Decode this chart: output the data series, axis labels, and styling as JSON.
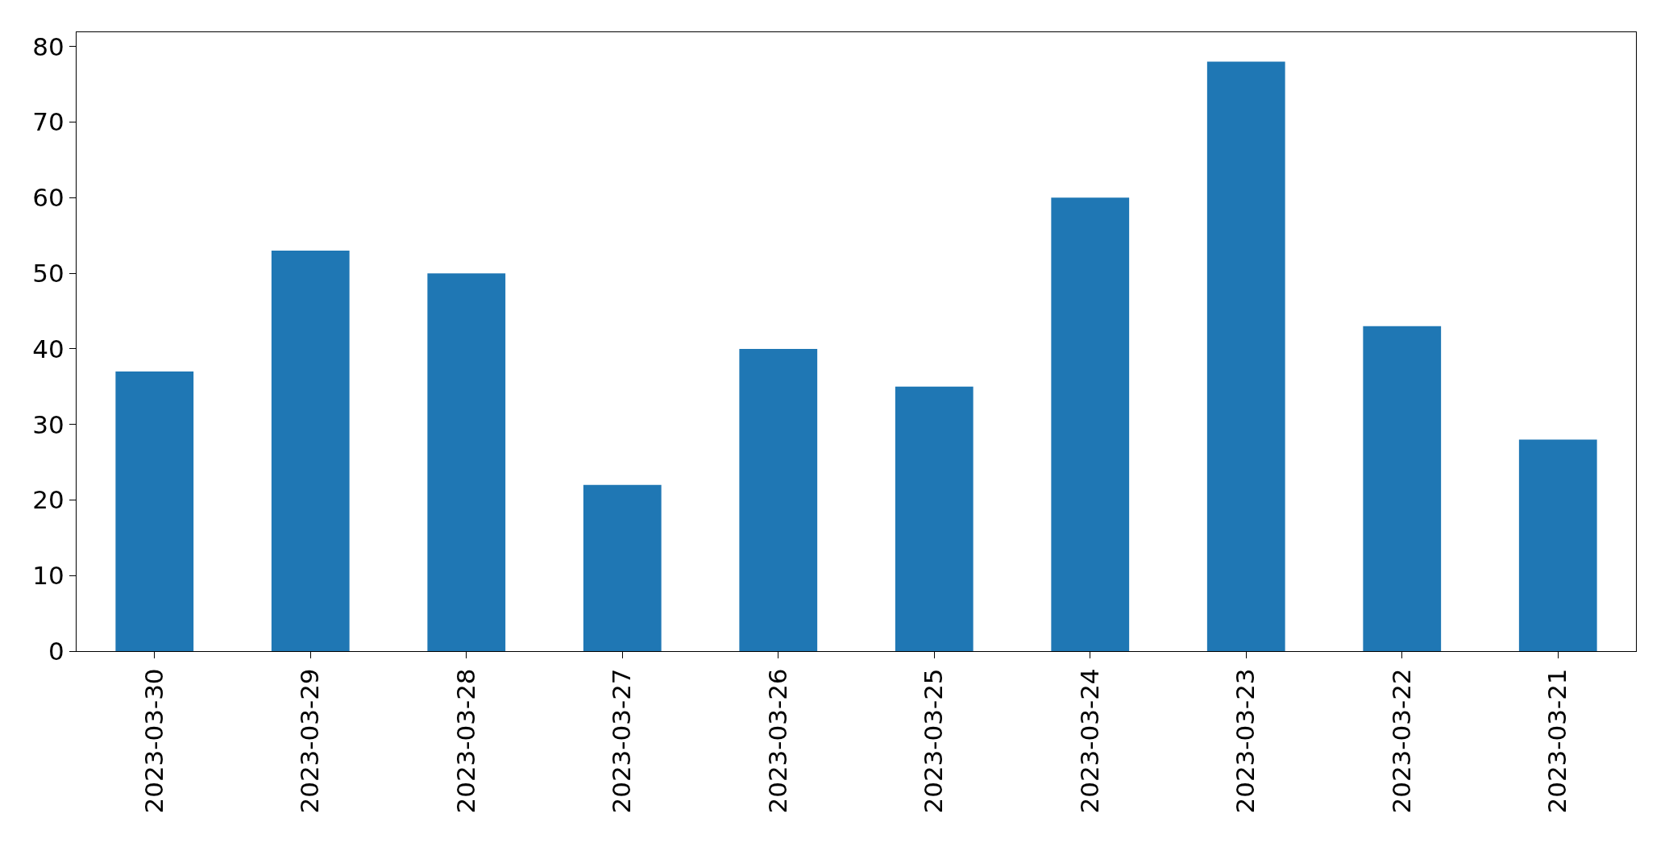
{
  "chart_data": {
    "type": "bar",
    "categories": [
      "2023-03-30",
      "2023-03-29",
      "2023-03-28",
      "2023-03-27",
      "2023-03-26",
      "2023-03-25",
      "2023-03-24",
      "2023-03-23",
      "2023-03-22",
      "2023-03-21"
    ],
    "values": [
      37,
      53,
      50,
      22,
      40,
      35,
      60,
      78,
      43,
      28
    ],
    "color": "#1f77b4",
    "ylim": [
      0,
      81.9
    ],
    "yticks": [
      0,
      10,
      20,
      30,
      40,
      50,
      60,
      70,
      80
    ],
    "grid": false
  }
}
